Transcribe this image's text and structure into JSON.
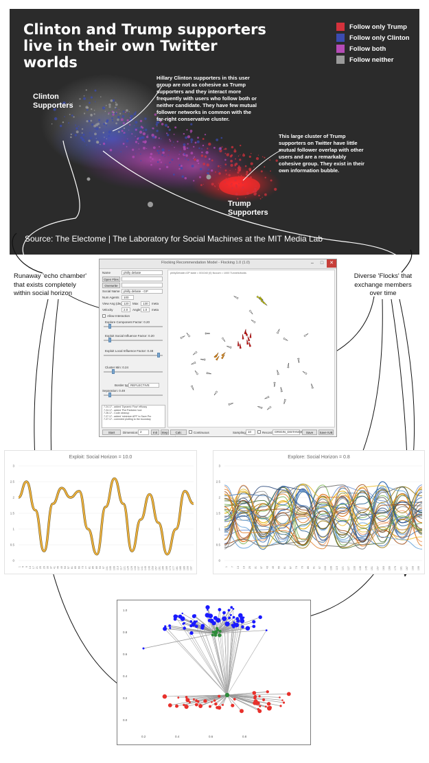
{
  "hero": {
    "title_line1": "Clinton and Trump supporters",
    "title_line2": "live in their own Twitter worlds",
    "legend": [
      {
        "label": "Follow only Trump",
        "color": "#d4323c"
      },
      {
        "label": "Follow only Clinton",
        "color": "#3b4bb0"
      },
      {
        "label": "Follow both",
        "color": "#b54bb6"
      },
      {
        "label": "Follow neither",
        "color": "#9a9a9a"
      }
    ],
    "clinton_label_1": "Clinton",
    "clinton_label_2": "Supporters",
    "trump_label_1": "Trump",
    "trump_label_2": "Supporters",
    "note_clinton": [
      "Hillary Clinton supporters in this user",
      "group are not as cohesive as Trump",
      "supporters and they interact more",
      "frequently with users who follow both or",
      "neither candidate. They have few mutual",
      "follower networks in common with the",
      "far-right conservative cluster."
    ],
    "note_trump": [
      "This large cluster of Trump",
      "supporters on Twitter have little",
      "mutual follower overlap with other",
      "users and are a remarkably",
      "cohesive group. They exist in their",
      "own information bubble."
    ],
    "source": "Source: The Electome  |  The Laboratory for Social Machines at the MIT Media Lab"
  },
  "callouts": {
    "left": [
      "Runaway 'echo chamber'",
      "that exists completely",
      "within social horizon"
    ],
    "right": [
      "Diverse 'Flocks' that",
      "exchange members",
      "over time"
    ]
  },
  "sim": {
    "title": "Flocking Recommendation Model - Flocking 1.0 (1.0)",
    "canvas_header": "phillyDebate=GP  state = 001040  (0)  Ncount = 1000  Tunnels/boids",
    "fields": [
      {
        "label": "Name",
        "value": "philly debate"
      },
      {
        "label": "Social Name",
        "value": "philly debate - GP"
      },
      {
        "label": "Num Agents",
        "value": "100"
      }
    ],
    "view_row": {
      "label": "View Ang (deg)",
      "v1": "120",
      "l2": "Max",
      "v2": "130",
      "l3": "Ok",
      "v3": "meta"
    },
    "veloc_row": {
      "label": "Velocity",
      "v1": "2.0",
      "l2": "Angle",
      "v2": "1.0",
      "l3": "Ok",
      "v3": "meta"
    },
    "buttons_top": [
      "Open Files",
      "Overwrite"
    ],
    "checkbox_label": "Allow Interaction",
    "sliders": [
      {
        "label": "Explore Component Factor: 0.20",
        "frac": 0.08
      },
      {
        "label": "Exploit Social Influence Factor: 0.20",
        "frac": 0.09
      },
      {
        "label": "Exploit Local Influence Factor: 0.48",
        "frac": 0.95
      },
      {
        "label": "Cluster Min: 0.24",
        "frac": 0.15
      },
      {
        "label": "Separation: 0.49",
        "frac": 0.08
      }
    ],
    "border_label": "Border type",
    "border_value": "REFLECTIVE",
    "log": [
      "7.24.17 - added 'Dynamic Flow' efficacy",
      "7.24.17 - added 'Plot Particles' tool",
      "7.26.17 - Code cleanup",
      "7.27.17 - added 'minimize APF' to Save Pro",
      "7.27.17 - corrected plotting to the boundary"
    ],
    "bottom": {
      "start": "Start Creature",
      "dimension": "Dimension:",
      "dim_value": "2",
      "init": "Init",
      "step": "Step",
      "calc": "Calc Clusters",
      "continuous": "Continuous",
      "sampling": "Sampling",
      "sampling_value": "10",
      "record": "Record",
      "record_value": "ORIGIN_DISTANCES",
      "save_a": "Save ASR",
      "save_b": "Save IUB"
    }
  },
  "exploit_chart": {
    "title": "Exploit: Social Horizon = 10.0",
    "y_ticks": [
      "3",
      "2.5",
      "2",
      "1.5",
      "1",
      "0.5",
      "0"
    ],
    "x_ticks": [
      "1",
      "5",
      "9",
      "13",
      "17",
      "21",
      "25",
      "29",
      "33",
      "37",
      "41",
      "45",
      "49",
      "53",
      "57",
      "61",
      "65",
      "69",
      "73",
      "77",
      "81",
      "85",
      "89",
      "93",
      "97",
      "101",
      "105",
      "109",
      "113",
      "117",
      "121",
      "125",
      "129",
      "133",
      "137",
      "141",
      "145",
      "149",
      "153",
      "157",
      "161",
      "165",
      "169",
      "173",
      "177",
      "181",
      "185",
      "189",
      "193",
      "197"
    ]
  },
  "explore_chart": {
    "title": "Explore: Social Horizon = 0.8",
    "y_ticks": [
      "3",
      "2.5",
      "2",
      "1.5",
      "1",
      "0.5",
      "0"
    ],
    "x_ticks": [
      "1",
      "7",
      "13",
      "19",
      "25",
      "31",
      "37",
      "43",
      "49",
      "55",
      "61",
      "67",
      "73",
      "79",
      "85",
      "91",
      "97",
      "103",
      "109",
      "115",
      "121",
      "127",
      "133",
      "139",
      "145",
      "151",
      "157",
      "163",
      "169",
      "175",
      "181",
      "187",
      "193",
      "199"
    ]
  },
  "network": {
    "y_ticks": [
      "1.0",
      "0.8",
      "0.6",
      "0.4",
      "0.2",
      "0.0"
    ],
    "x_ticks": [
      "0.2",
      "0.4",
      "0.6",
      "0.8"
    ],
    "colors": {
      "top": "#1a1aff",
      "bottom": "#e8312c",
      "hub": "#2e8b3a"
    }
  },
  "chart_data": [
    {
      "type": "line",
      "title": "Exploit: Social Horizon = 10.0",
      "xlabel": "",
      "ylabel": "",
      "ylim": [
        0,
        3
      ],
      "x": [
        1,
        10,
        20,
        30,
        40,
        50,
        60,
        70,
        80,
        90,
        100,
        110,
        120,
        130,
        140,
        150,
        160,
        170,
        180,
        190,
        200
      ],
      "series": [
        {
          "values": [
            2.0,
            2.5,
            1.6,
            0.3,
            1.8,
            2.3,
            2.0,
            2.2,
            1.0,
            0.2,
            1.7,
            2.6,
            1.8,
            0.3,
            1.3,
            2.1,
            1.2,
            0.2,
            1.0,
            2.2,
            1.8
          ]
        }
      ]
    },
    {
      "type": "line",
      "title": "Explore: Social Horizon = 0.8",
      "xlabel": "",
      "ylabel": "",
      "ylim": [
        0,
        3
      ],
      "x": [
        1,
        20,
        40,
        60,
        80,
        100,
        120,
        140,
        160,
        180,
        200
      ],
      "series": [
        {
          "values": [
            1.3,
            1.9,
            0.7,
            1.6,
            2.2,
            1.0,
            1.8,
            0.6,
            2.5,
            1.2,
            1.6
          ]
        },
        {
          "values": [
            1.7,
            0.6,
            1.8,
            1.1,
            0.5,
            2.1,
            1.4,
            2.3,
            0.9,
            1.9,
            1.2
          ]
        },
        {
          "values": [
            0.9,
            1.5,
            2.1,
            0.7,
            1.7,
            1.3,
            0.8,
            1.6,
            2.0,
            0.7,
            1.8
          ]
        },
        {
          "values": [
            1.5,
            2.2,
            1.2,
            1.9,
            1.0,
            1.7,
            2.2,
            1.1,
            1.5,
            2.1,
            0.9
          ]
        }
      ]
    }
  ]
}
